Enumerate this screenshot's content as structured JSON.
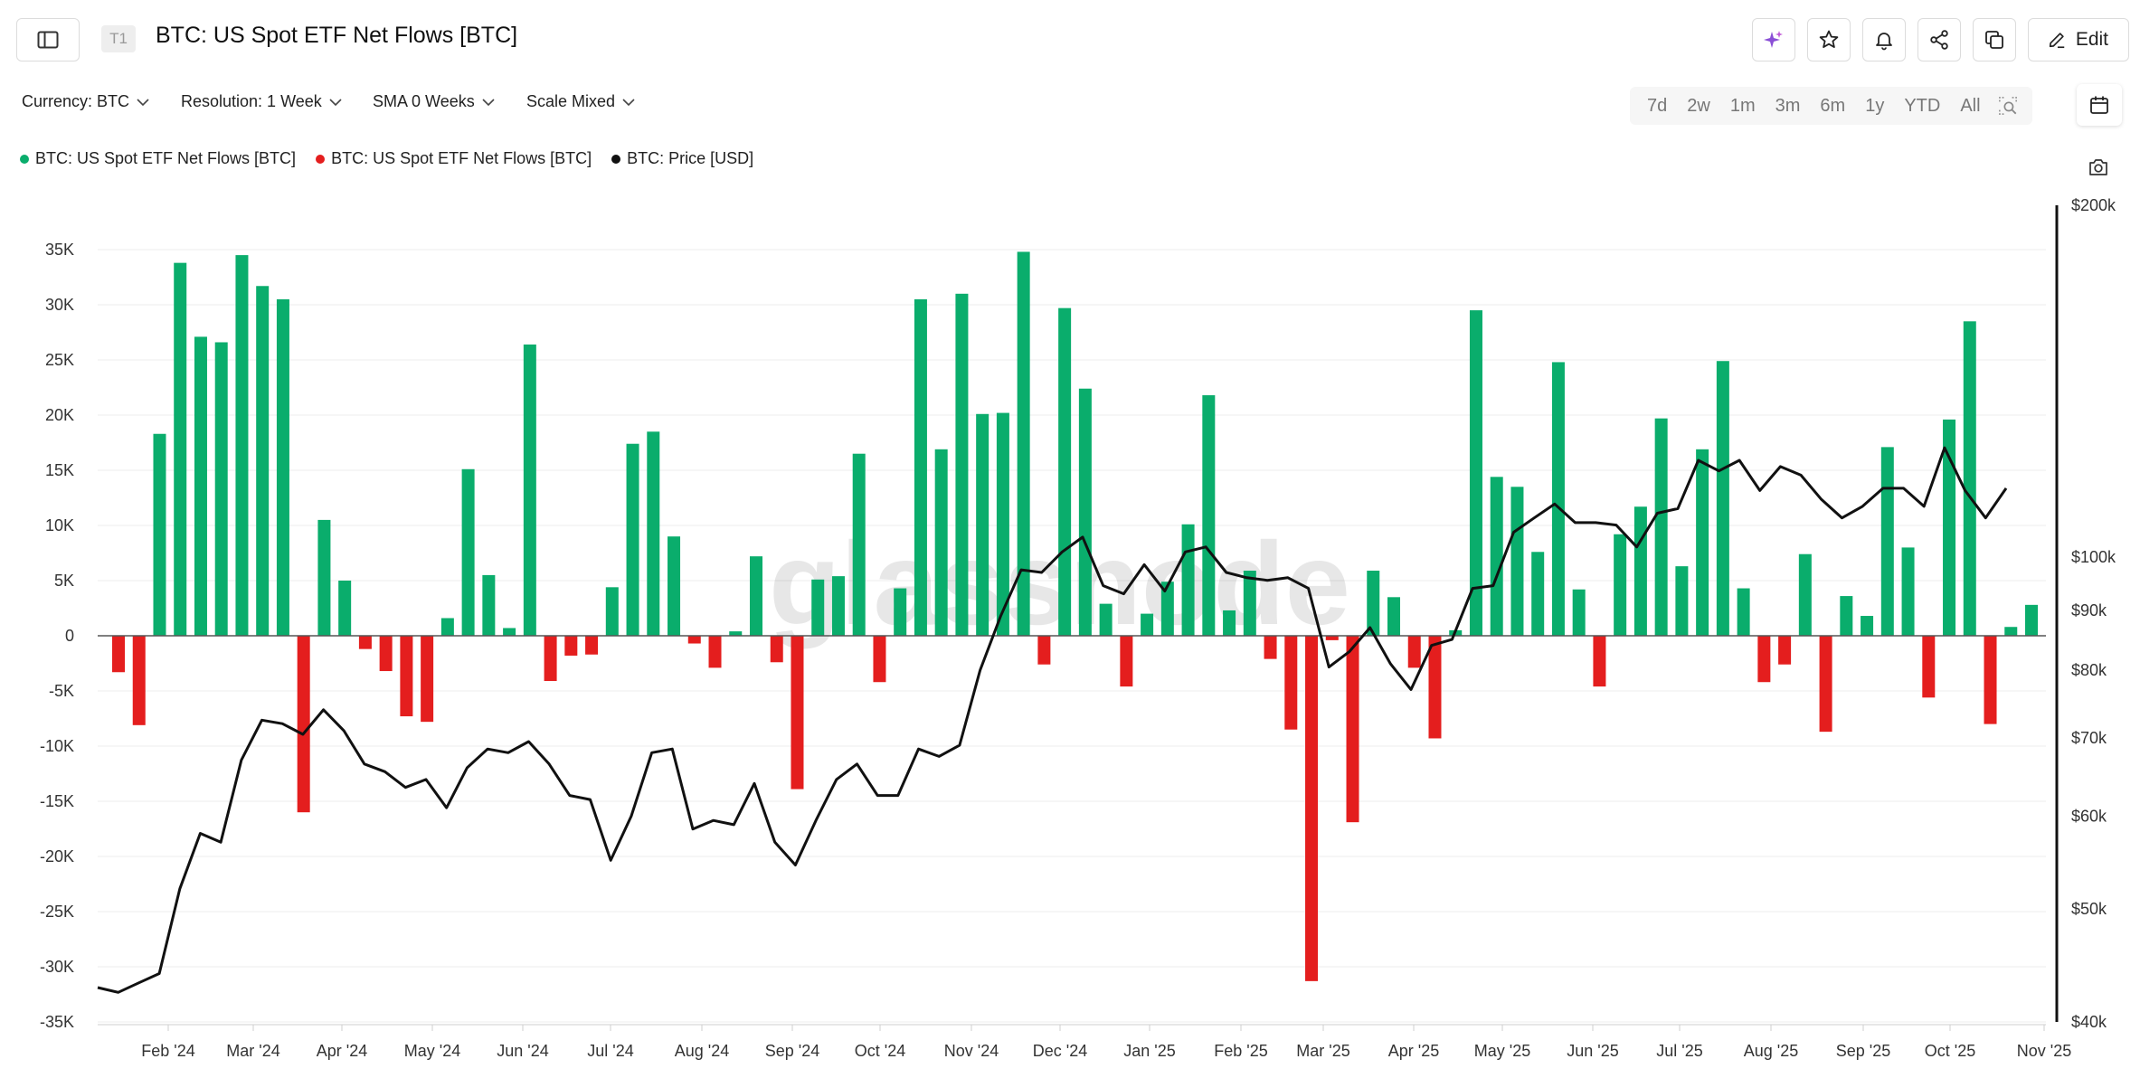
{
  "header": {
    "badge": "T1",
    "title": "BTC: US Spot ETF Net Flows [BTC]",
    "edit_label": "Edit",
    "icons": [
      "sidebar-toggle-icon",
      "sparkle-icon",
      "star-icon",
      "bell-icon",
      "share-icon",
      "copy-icon",
      "edit-icon"
    ]
  },
  "controls": {
    "currency": "Currency: BTC",
    "resolution": "Resolution: 1 Week",
    "sma": "SMA 0 Weeks",
    "scale": "Scale Mixed",
    "ranges": [
      "7d",
      "2w",
      "1m",
      "3m",
      "6m",
      "1y",
      "YTD",
      "All"
    ]
  },
  "legend": [
    {
      "label": "BTC: US Spot ETF Net Flows [BTC]",
      "color": "#0aad6c"
    },
    {
      "label": "BTC: US Spot ETF Net Flows [BTC]",
      "color": "#e41e1e"
    },
    {
      "label": "BTC: Price [USD]",
      "color": "#111111"
    }
  ],
  "chart_data": {
    "type": "bar",
    "title": "BTC: US Spot ETF Net Flows [BTC]",
    "watermark": "glassnode",
    "x_labels": [
      "Feb '24",
      "Mar '24",
      "Apr '24",
      "May '24",
      "Jun '24",
      "Jul '24",
      "Aug '24",
      "Sep '24",
      "Oct '24",
      "Nov '24",
      "Dec '24",
      "Jan '25",
      "Feb '25",
      "Mar '25",
      "Apr '25",
      "May '25",
      "Jun '25",
      "Jul '25",
      "Aug '25",
      "Sep '25",
      "Oct '25",
      "Nov '25"
    ],
    "y_left": {
      "min": -35000,
      "max": 35000,
      "ticks": [
        35000,
        30000,
        25000,
        20000,
        15000,
        10000,
        5000,
        0,
        -5000,
        -10000,
        -15000,
        -20000,
        -25000,
        -30000,
        -35000
      ],
      "tick_labels": [
        "35K",
        "30K",
        "25K",
        "20K",
        "15K",
        "10K",
        "5K",
        "0",
        "-5K",
        "-10K",
        "-15K",
        "-20K",
        "-25K",
        "-30K",
        "-35K"
      ]
    },
    "y_right": {
      "scale": "log",
      "min": 40000,
      "max": 200000,
      "ticks": [
        200000,
        100000,
        90000,
        80000,
        70000,
        60000,
        50000,
        40000
      ],
      "tick_labels": [
        "$200k",
        "$100k",
        "$90k",
        "$80k",
        "$70k",
        "$60k",
        "$50k",
        "$40k"
      ]
    },
    "series": [
      {
        "name": "BTC: US Spot ETF Net Flows [BTC]",
        "color_positive": "#0aad6c",
        "color_negative": "#e41e1e",
        "values": [
          -3300,
          -8100,
          18300,
          33800,
          27100,
          26600,
          34500,
          31700,
          30500,
          -16000,
          10500,
          5000,
          -1200,
          -3200,
          -7300,
          -7800,
          1600,
          15100,
          5500,
          700,
          26400,
          -4100,
          -1800,
          -1700,
          4400,
          17400,
          18500,
          9000,
          -700,
          -2900,
          400,
          7200,
          -2400,
          -13900,
          5100,
          5400,
          16500,
          -4200,
          4300,
          30500,
          16900,
          31000,
          20100,
          20200,
          34800,
          -2600,
          29700,
          22400,
          2900,
          -4600,
          2000,
          4900,
          10100,
          21800,
          2300,
          5900,
          -2100,
          -8500,
          -31300,
          -400,
          -16900,
          5900,
          3500,
          -2900,
          -9300,
          500,
          29500,
          14400,
          13500,
          7600,
          24800,
          4200,
          -4600,
          9200,
          11700,
          19700,
          6300,
          16900,
          24900,
          4300,
          -4200,
          -2600,
          7400,
          -8700,
          3600,
          1800,
          17100,
          8000,
          -5600,
          19600,
          28500,
          -8000,
          800,
          2800
        ]
      },
      {
        "name": "BTC: Price [USD]",
        "color": "#111111",
        "values": [
          42800,
          42400,
          43200,
          44000,
          52000,
          58000,
          57000,
          67000,
          72500,
          72000,
          70500,
          74000,
          71000,
          66500,
          65500,
          63500,
          64500,
          61000,
          66000,
          68500,
          68000,
          69500,
          66500,
          62500,
          62000,
          55000,
          60000,
          68000,
          68500,
          58500,
          59500,
          59000,
          64000,
          57000,
          54500,
          59500,
          64500,
          66500,
          62500,
          62500,
          68500,
          67500,
          69000,
          80000,
          89000,
          97500,
          97000,
          101000,
          104000,
          94500,
          93000,
          98500,
          93500,
          101000,
          102000,
          97000,
          96000,
          95500,
          96000,
          94000,
          80500,
          83000,
          87000,
          81000,
          77000,
          84000,
          85000,
          94000,
          94500,
          105000,
          108000,
          111000,
          107000,
          107000,
          106500,
          102000,
          109000,
          110000,
          121000,
          118500,
          121000,
          114000,
          119500,
          117500,
          112000,
          108000,
          110500,
          114500,
          114500,
          110500,
          124000,
          114000,
          108000,
          114500
        ]
      }
    ]
  }
}
